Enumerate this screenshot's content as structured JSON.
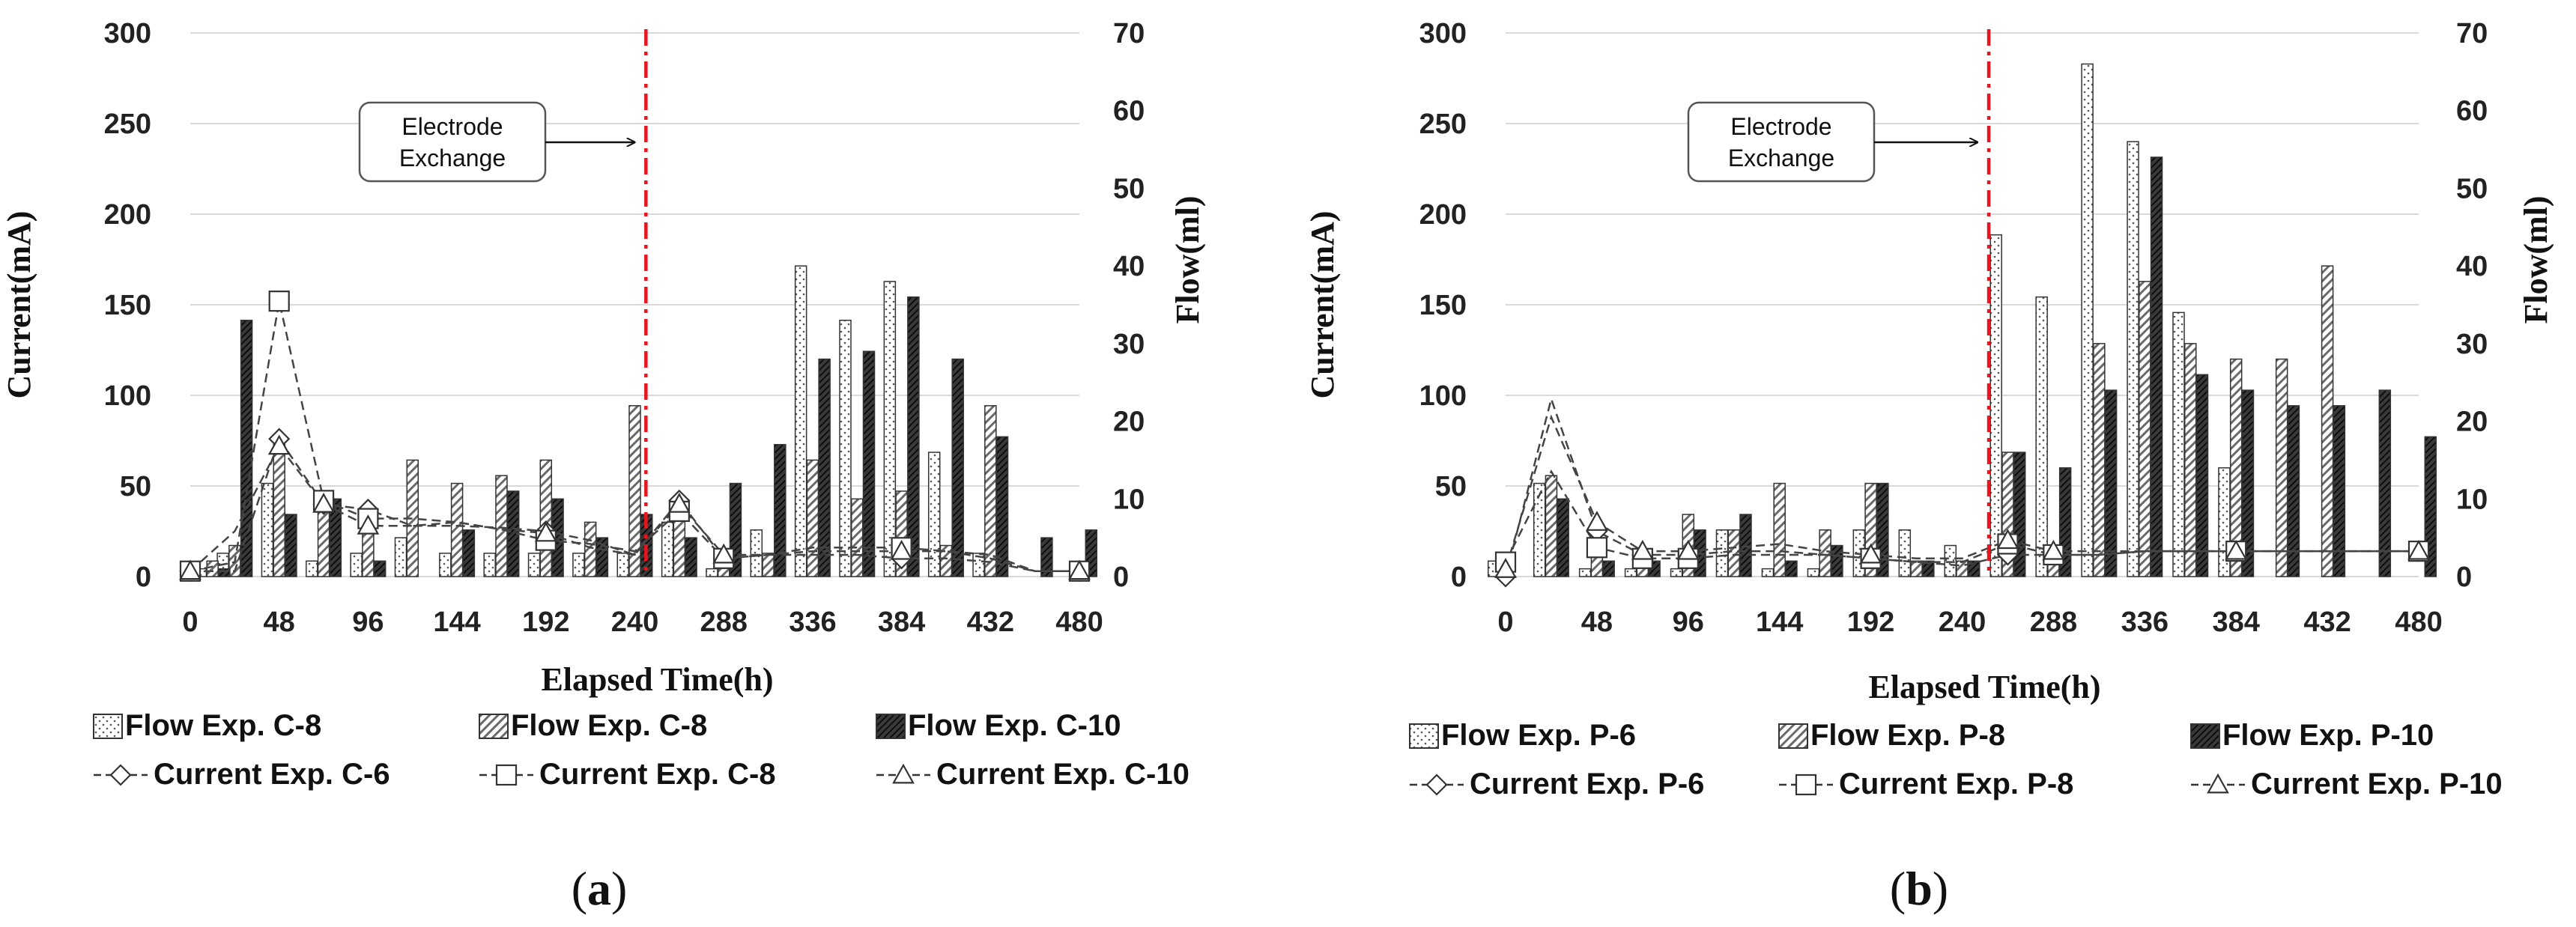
{
  "chart_data": [
    {
      "type": "bar",
      "panel_label": "a",
      "xlabel": "Elapsed Time(h)",
      "ylabel": "Current(mA)",
      "y2label": "Flow(ml)",
      "x_ticks": [
        0,
        48,
        96,
        144,
        192,
        240,
        288,
        336,
        384,
        432,
        480
      ],
      "ylim": [
        0,
        300
      ],
      "y_ticks": [
        0,
        50,
        100,
        150,
        200,
        250,
        300
      ],
      "y2lim": [
        0,
        70
      ],
      "y2_ticks": [
        0,
        10,
        20,
        30,
        40,
        50,
        60,
        70
      ],
      "grid": true,
      "legend_position": "bottom",
      "annotation": {
        "text_lines": [
          "Electrode",
          "Exchange"
        ],
        "x": 246
      },
      "bar_series": [
        {
          "name": "Flow Exp. C-8",
          "axis": "flow",
          "pattern": "dots",
          "x": [
            12,
            24,
            48,
            72,
            96,
            120,
            144,
            168,
            192,
            216,
            240,
            264,
            288,
            312,
            336,
            360,
            384,
            408,
            432
          ],
          "values": [
            1,
            3,
            12,
            2,
            3,
            5,
            3,
            3,
            3,
            3,
            3,
            7,
            1,
            6,
            40,
            33,
            38,
            16,
            3
          ]
        },
        {
          "name": "Flow Exp. C-8",
          "axis": "flow",
          "pattern": "hatch",
          "x": [
            12,
            24,
            48,
            72,
            96,
            120,
            144,
            168,
            192,
            216,
            240,
            264,
            288,
            312,
            336,
            360,
            384,
            408,
            432
          ],
          "values": [
            2,
            4,
            17,
            9,
            9,
            15,
            12,
            13,
            15,
            7,
            22,
            9,
            2,
            3,
            15,
            10,
            11,
            4,
            22
          ]
        },
        {
          "name": "Flow Exp. C-10",
          "axis": "flow",
          "pattern": "dark",
          "x": [
            12,
            24,
            48,
            72,
            96,
            120,
            144,
            168,
            192,
            216,
            240,
            264,
            288,
            312,
            336,
            360,
            384,
            408,
            432,
            456,
            480
          ],
          "values": [
            1,
            33,
            8,
            10,
            2,
            0,
            6,
            11,
            10,
            5,
            8,
            5,
            12,
            17,
            28,
            29,
            36,
            28,
            18,
            5,
            6
          ]
        }
      ],
      "line_series": [
        {
          "name": "Current Exp. C-6",
          "axis": "current",
          "marker": "diamond",
          "x": [
            0,
            24,
            48,
            72,
            96,
            120,
            144,
            168,
            192,
            216,
            240,
            264,
            288,
            312,
            336,
            360,
            384,
            408,
            432,
            456,
            480
          ],
          "values": [
            3,
            3,
            76,
            40,
            37,
            28,
            28,
            27,
            25,
            20,
            12,
            42,
            10,
            12,
            12,
            12,
            10,
            10,
            8,
            3,
            3
          ]
        },
        {
          "name": "Current Exp. C-8",
          "axis": "current",
          "marker": "square",
          "x": [
            0,
            24,
            48,
            72,
            96,
            120,
            144,
            168,
            192,
            216,
            240,
            264,
            288,
            312,
            336,
            360,
            384,
            408,
            432,
            456,
            480
          ],
          "values": [
            3,
            8,
            152,
            42,
            32,
            32,
            30,
            26,
            20,
            18,
            14,
            36,
            10,
            12,
            16,
            16,
            16,
            14,
            10,
            3,
            3
          ]
        },
        {
          "name": "Current Exp. C-10",
          "axis": "current",
          "marker": "triangle",
          "x": [
            0,
            24,
            48,
            72,
            96,
            120,
            144,
            168,
            192,
            216,
            240,
            264,
            288,
            312,
            336,
            360,
            384,
            408,
            432,
            456,
            480
          ],
          "values": [
            3,
            25,
            72,
            40,
            28,
            28,
            30,
            26,
            24,
            16,
            12,
            40,
            12,
            12,
            14,
            14,
            14,
            14,
            12,
            3,
            3
          ]
        }
      ],
      "legend": [
        {
          "label": "Flow Exp. C-8",
          "kind": "dots"
        },
        {
          "label": "Flow Exp. C-8",
          "kind": "hatch"
        },
        {
          "label": "Flow Exp. C-10",
          "kind": "dark"
        },
        {
          "label": "Current Exp. C-6",
          "kind": "diamond"
        },
        {
          "label": "Current Exp. C-8",
          "kind": "square"
        },
        {
          "label": "Current Exp. C-10",
          "kind": "triangle"
        }
      ]
    },
    {
      "type": "bar",
      "panel_label": "b",
      "xlabel": "Elapsed Time(h)",
      "ylabel": "Current(mA)",
      "y2label": "Flow(ml)",
      "x_ticks": [
        0,
        48,
        96,
        144,
        192,
        240,
        288,
        336,
        384,
        432,
        480
      ],
      "ylim": [
        0,
        300
      ],
      "y_ticks": [
        0,
        50,
        100,
        150,
        200,
        250,
        300
      ],
      "y2lim": [
        0,
        70
      ],
      "y2_ticks": [
        0,
        10,
        20,
        30,
        40,
        50,
        60,
        70
      ],
      "grid": true,
      "legend_position": "bottom",
      "annotation": {
        "text_lines": [
          "Electrode",
          "Exchange"
        ],
        "x": 254
      },
      "bar_series": [
        {
          "name": "Flow Exp. P-6",
          "axis": "flow",
          "pattern": "dots",
          "x": [
            0,
            24,
            48,
            72,
            96,
            120,
            144,
            168,
            192,
            216,
            240,
            264,
            288,
            312,
            336,
            360,
            384,
            408,
            432
          ],
          "values": [
            2,
            12,
            1,
            1,
            1,
            6,
            1,
            1,
            6,
            6,
            4,
            44,
            36,
            66,
            56,
            34,
            14,
            0,
            0
          ]
        },
        {
          "name": "Flow Exp. P-8",
          "axis": "flow",
          "pattern": "hatch",
          "x": [
            24,
            48,
            72,
            96,
            120,
            144,
            168,
            192,
            216,
            240,
            264,
            288,
            312,
            336,
            360,
            384,
            408,
            432
          ],
          "values": [
            13,
            3,
            2,
            8,
            6,
            12,
            6,
            12,
            2,
            2,
            16,
            4,
            30,
            38,
            30,
            28,
            28,
            40
          ]
        },
        {
          "name": "Flow Exp. P-10",
          "axis": "flow",
          "pattern": "dark",
          "x": [
            24,
            48,
            72,
            96,
            120,
            144,
            168,
            192,
            216,
            240,
            264,
            288,
            312,
            336,
            360,
            384,
            408,
            432,
            456,
            480
          ],
          "values": [
            10,
            2,
            2,
            6,
            8,
            2,
            4,
            12,
            2,
            2,
            16,
            14,
            24,
            54,
            26,
            24,
            22,
            22,
            24,
            18
          ]
        }
      ],
      "line_series": [
        {
          "name": "Current Exp. P-6",
          "axis": "current",
          "marker": "diamond",
          "x": [
            0,
            24,
            48,
            72,
            96,
            120,
            144,
            168,
            192,
            216,
            240,
            264,
            288,
            312,
            336,
            360,
            384,
            408,
            432,
            456,
            480
          ],
          "values": [
            0,
            98,
            25,
            12,
            12,
            14,
            14,
            12,
            10,
            8,
            6,
            12,
            12,
            12,
            14,
            14,
            14,
            14,
            14,
            14,
            14
          ]
        },
        {
          "name": "Current Exp. P-8",
          "axis": "current",
          "marker": "square",
          "x": [
            0,
            24,
            48,
            72,
            96,
            120,
            144,
            168,
            192,
            216,
            240,
            264,
            288,
            312,
            336,
            360,
            384,
            408,
            432,
            456,
            480
          ],
          "values": [
            8,
            58,
            16,
            10,
            10,
            12,
            12,
            12,
            10,
            8,
            8,
            18,
            12,
            12,
            14,
            14,
            14,
            14,
            14,
            14,
            14
          ]
        },
        {
          "name": "Current Exp. P-10",
          "axis": "current",
          "marker": "triangle",
          "x": [
            0,
            24,
            48,
            72,
            96,
            120,
            144,
            168,
            192,
            216,
            240,
            264,
            288,
            312,
            336,
            360,
            384,
            408,
            432,
            456,
            480
          ],
          "values": [
            4,
            88,
            30,
            14,
            14,
            16,
            18,
            14,
            12,
            10,
            10,
            20,
            14,
            14,
            14,
            14,
            14,
            14,
            14,
            14,
            14
          ]
        }
      ],
      "legend": [
        {
          "label": "Flow Exp. P-6",
          "kind": "dots"
        },
        {
          "label": "Flow Exp. P-8",
          "kind": "hatch"
        },
        {
          "label": "Flow Exp. P-10",
          "kind": "dark"
        },
        {
          "label": "Current Exp. P-6",
          "kind": "diamond"
        },
        {
          "label": "Current Exp. P-8",
          "kind": "square"
        },
        {
          "label": "Current Exp. P-10",
          "kind": "triangle"
        }
      ]
    }
  ],
  "colors": {
    "exchange_line": "#e8141e",
    "grid": "#d9d9d9",
    "text": "#111111"
  }
}
